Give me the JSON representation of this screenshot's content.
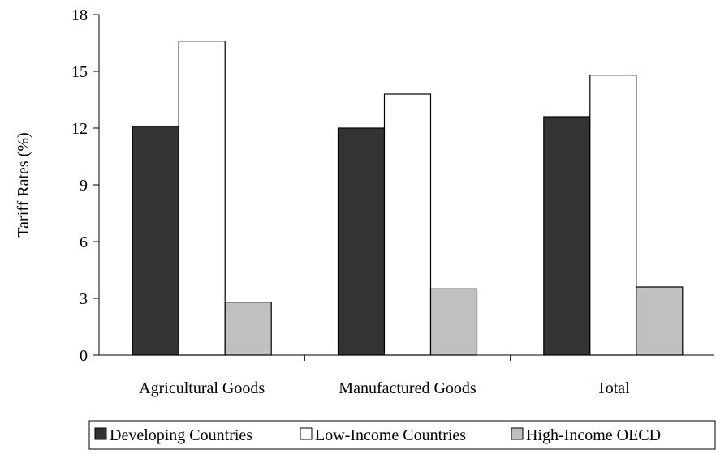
{
  "chart_data": {
    "type": "bar",
    "title": "",
    "xlabel": "",
    "ylabel": "Tariff Rates (%)",
    "ylim": [
      0,
      18
    ],
    "yticks": [
      0,
      3,
      6,
      9,
      12,
      15,
      18
    ],
    "grid": false,
    "legend_position": "bottom",
    "categories": [
      "Agricultural Goods",
      "Manufactured Goods",
      "Total"
    ],
    "series": [
      {
        "name": "Developing Countries",
        "values": [
          12.1,
          12.0,
          12.6
        ],
        "color": "#333333"
      },
      {
        "name": "Low-Income Countries",
        "values": [
          16.6,
          13.8,
          14.8
        ],
        "color": "#ffffff"
      },
      {
        "name": "High-Income OECD",
        "values": [
          2.8,
          3.5,
          3.6
        ],
        "color": "#c0c0c0"
      }
    ]
  }
}
